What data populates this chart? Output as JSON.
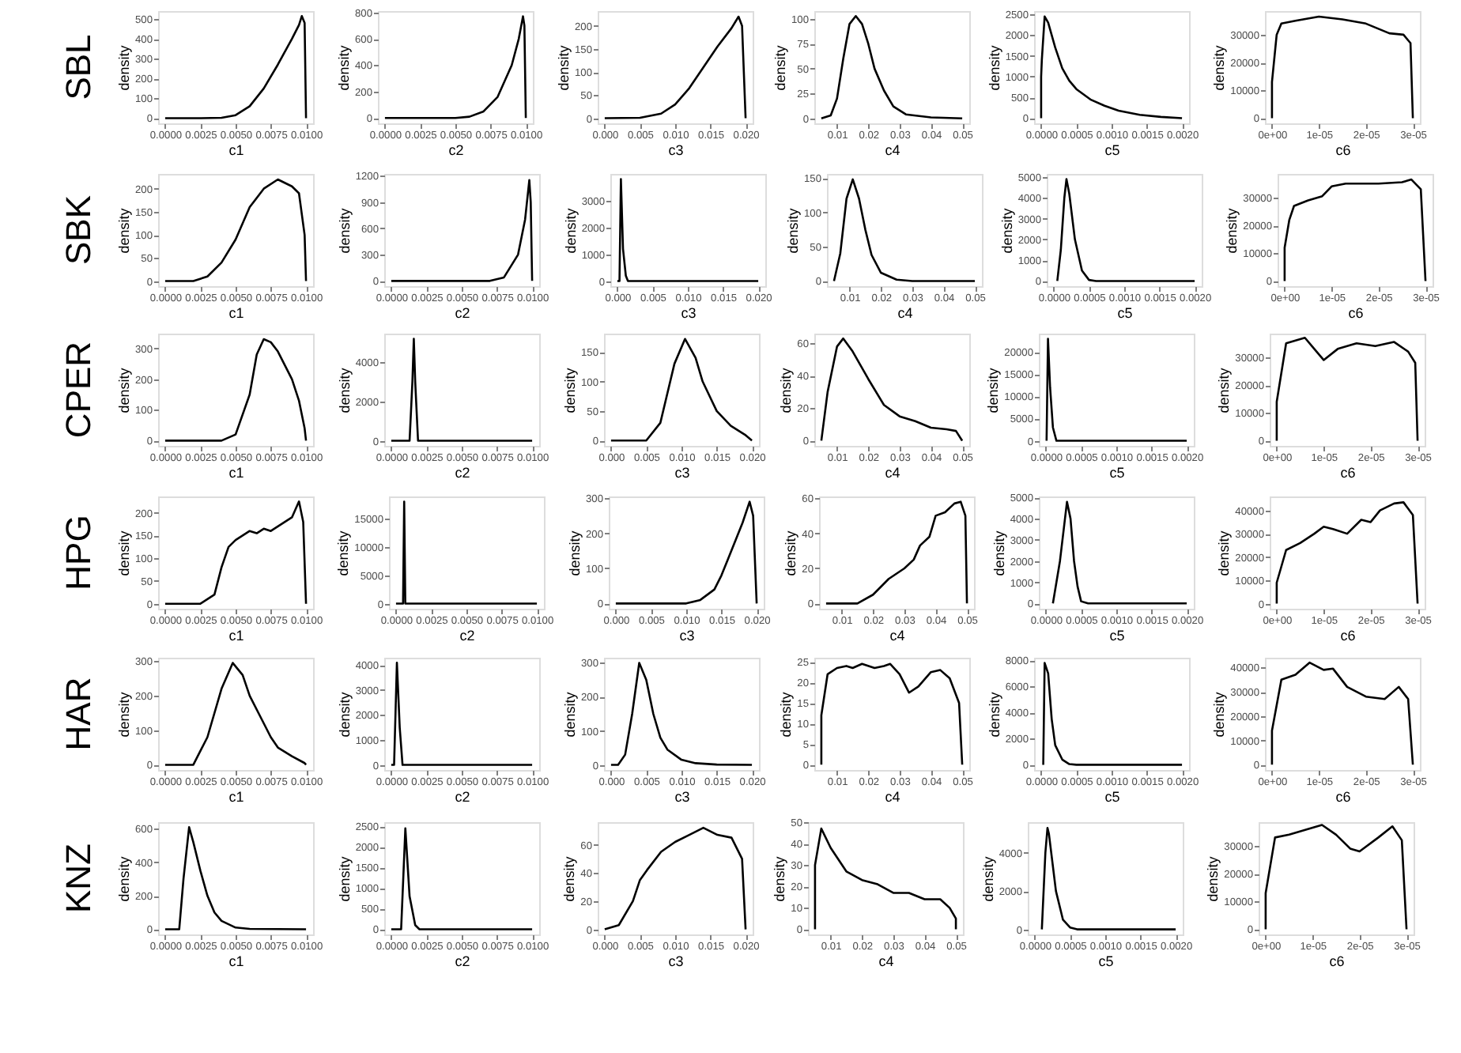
{
  "chart_data": [
    {
      "type": "line",
      "annotations": [
        "SBL"
      ],
      "xlabel": "c1",
      "ylabel": "density",
      "color": "#000000",
      "x": [
        0,
        0.0025,
        0.004,
        0.005,
        0.006,
        0.007,
        0.008,
        0.009,
        0.0095,
        0.0097,
        0.0099,
        0.01
      ],
      "values": [
        0,
        0,
        2,
        15,
        60,
        150,
        270,
        400,
        470,
        515,
        480,
        0
      ],
      "xlim": [
        -0.0005,
        0.0105
      ],
      "xticks": [
        {
          "value": 0,
          "label": "0.0000"
        },
        {
          "value": 0.0025,
          "label": "0.0025"
        },
        {
          "value": 0.005,
          "label": "0.0050"
        },
        {
          "value": 0.0075,
          "label": "0.0075"
        },
        {
          "value": 0.01,
          "label": "0.0100"
        }
      ],
      "ylim": [
        -26,
        540
      ],
      "yticks": [
        0,
        100,
        200,
        300,
        400,
        500
      ],
      "grid": false
    },
    {
      "type": "line",
      "xlabel": "c2",
      "ylabel": "density",
      "color": "#000000",
      "x": [
        0,
        0.005,
        0.006,
        0.007,
        0.008,
        0.009,
        0.0095,
        0.0098,
        0.0099,
        0.01
      ],
      "values": [
        0,
        0,
        10,
        50,
        160,
        400,
        600,
        770,
        700,
        0
      ],
      "xlim": [
        -0.0005,
        0.0105
      ],
      "xticks": [
        {
          "value": 0,
          "label": "0.0000"
        },
        {
          "value": 0.0025,
          "label": "0.0025"
        },
        {
          "value": 0.005,
          "label": "0.0050"
        },
        {
          "value": 0.0075,
          "label": "0.0075"
        },
        {
          "value": 0.01,
          "label": "0.0100"
        }
      ],
      "ylim": [
        -40,
        810
      ],
      "yticks": [
        0,
        200,
        400,
        600,
        800
      ],
      "grid": false
    },
    {
      "type": "line",
      "xlabel": "c3",
      "ylabel": "density",
      "color": "#000000",
      "x": [
        0,
        0.005,
        0.008,
        0.01,
        0.012,
        0.014,
        0.016,
        0.018,
        0.019,
        0.0195,
        0.02
      ],
      "values": [
        0,
        1,
        10,
        30,
        65,
        110,
        155,
        195,
        220,
        200,
        0
      ],
      "xlim": [
        -0.001,
        0.021
      ],
      "xticks": [
        {
          "value": 0,
          "label": "0.000"
        },
        {
          "value": 0.005,
          "label": "0.005"
        },
        {
          "value": 0.01,
          "label": "0.010"
        },
        {
          "value": 0.015,
          "label": "0.015"
        },
        {
          "value": 0.02,
          "label": "0.020"
        }
      ],
      "ylim": [
        -11,
        232
      ],
      "yticks": [
        0,
        50,
        100,
        150,
        200
      ],
      "grid": false
    },
    {
      "type": "line",
      "xlabel": "c4",
      "ylabel": "density",
      "color": "#000000",
      "x": [
        0.005,
        0.008,
        0.01,
        0.012,
        0.014,
        0.016,
        0.018,
        0.02,
        0.022,
        0.025,
        0.028,
        0.032,
        0.04,
        0.05
      ],
      "values": [
        0,
        3,
        20,
        60,
        95,
        103,
        95,
        75,
        50,
        28,
        12,
        4,
        1,
        0
      ],
      "xlim": [
        0.00275,
        0.05225
      ],
      "xticks": [
        0.01,
        0.02,
        0.03,
        0.04,
        0.05
      ],
      "ylim": [
        -5,
        108
      ],
      "yticks": [
        0,
        25,
        50,
        75,
        100
      ],
      "grid": false
    },
    {
      "type": "line",
      "xlabel": "c5",
      "ylabel": "density",
      "color": "#000000",
      "x": [
        0,
        0,
        1e-05,
        5e-05,
        0.0001,
        0.0002,
        0.0003,
        0.0004,
        0.0005,
        0.0007,
        0.0009,
        0.0011,
        0.0014,
        0.0017,
        0.002
      ],
      "values": [
        0,
        1000,
        1400,
        2450,
        2300,
        1700,
        1200,
        900,
        700,
        450,
        300,
        180,
        80,
        30,
        0
      ],
      "xlim": [
        -0.0001,
        0.0021
      ],
      "xticks": [
        {
          "value": 0,
          "label": "0.0000"
        },
        {
          "value": 0.0005,
          "label": "0.0005"
        },
        {
          "value": 0.001,
          "label": "0.0010"
        },
        {
          "value": 0.0015,
          "label": "0.0015"
        },
        {
          "value": 0.002,
          "label": "0.0020"
        }
      ],
      "ylim": [
        -125,
        2580
      ],
      "yticks": [
        0,
        500,
        1000,
        1500,
        2000,
        2500
      ],
      "grid": false
    },
    {
      "type": "line",
      "xlabel": "c6",
      "ylabel": "density",
      "color": "#000000",
      "x": [
        0,
        0,
        1e-06,
        2e-06,
        5e-06,
        1e-05,
        1.5e-05,
        2e-05,
        2.5e-05,
        2.8e-05,
        2.95e-05,
        3e-05
      ],
      "values": [
        0,
        13000,
        30000,
        34000,
        35000,
        36500,
        35500,
        34000,
        30500,
        30000,
        27000,
        0
      ],
      "xlim": [
        -1.5e-06,
        3.15e-05
      ],
      "xticks": [
        {
          "value": 0,
          "label": "0e+00"
        },
        {
          "value": 1e-05,
          "label": "1e-05"
        },
        {
          "value": 2e-05,
          "label": "2e-05"
        },
        {
          "value": 3e-05,
          "label": "3e-05"
        }
      ],
      "ylim": [
        -1850,
        38500
      ],
      "yticks": [
        0,
        10000,
        20000,
        30000
      ],
      "grid": false
    },
    {
      "type": "line",
      "annotations": [
        "SBK"
      ],
      "xlabel": "c1",
      "ylabel": "density",
      "color": "#000000",
      "x": [
        0,
        0.002,
        0.003,
        0.004,
        0.005,
        0.006,
        0.007,
        0.008,
        0.009,
        0.0095,
        0.0099,
        0.01
      ],
      "values": [
        0,
        0,
        10,
        40,
        90,
        160,
        200,
        220,
        205,
        190,
        100,
        0
      ],
      "xlim": [
        -0.0005,
        0.0105
      ],
      "xticks": [
        {
          "value": 0,
          "label": "0.0000"
        },
        {
          "value": 0.0025,
          "label": "0.0025"
        },
        {
          "value": 0.005,
          "label": "0.0050"
        },
        {
          "value": 0.0075,
          "label": "0.0075"
        },
        {
          "value": 0.01,
          "label": "0.0100"
        }
      ],
      "ylim": [
        -11,
        232
      ],
      "yticks": [
        0,
        50,
        100,
        150,
        200
      ],
      "grid": false
    },
    {
      "type": "line",
      "xlabel": "c2",
      "ylabel": "density",
      "color": "#000000",
      "x": [
        0,
        0.007,
        0.008,
        0.009,
        0.0095,
        0.0098,
        0.0099,
        0.01
      ],
      "values": [
        0,
        0,
        40,
        300,
        700,
        1150,
        900,
        0
      ],
      "xlim": [
        -0.0005,
        0.0105
      ],
      "xticks": [
        {
          "value": 0,
          "label": "0.0000"
        },
        {
          "value": 0.0025,
          "label": "0.0025"
        },
        {
          "value": 0.005,
          "label": "0.0050"
        },
        {
          "value": 0.0075,
          "label": "0.0075"
        },
        {
          "value": 0.01,
          "label": "0.0100"
        }
      ],
      "ylim": [
        -60,
        1220
      ],
      "yticks": [
        0,
        300,
        600,
        900,
        1200
      ],
      "grid": false
    },
    {
      "type": "line",
      "xlabel": "c3",
      "ylabel": "density",
      "color": "#000000",
      "x": [
        0,
        0.0003,
        0.0005,
        0.0008,
        0.0012,
        0.0015,
        0.02
      ],
      "values": [
        0,
        0,
        3800,
        1200,
        200,
        0,
        0
      ],
      "xlim": [
        -0.001,
        0.021
      ],
      "xticks": [
        {
          "value": 0,
          "label": "0.000"
        },
        {
          "value": 0.005,
          "label": "0.005"
        },
        {
          "value": 0.01,
          "label": "0.010"
        },
        {
          "value": 0.015,
          "label": "0.015"
        },
        {
          "value": 0.02,
          "label": "0.020"
        }
      ],
      "ylim": [
        -190,
        3990
      ],
      "yticks": [
        0,
        1000,
        2000,
        3000
      ],
      "grid": false
    },
    {
      "type": "line",
      "xlabel": "c4",
      "ylabel": "density",
      "color": "#000000",
      "x": [
        0.005,
        0.007,
        0.009,
        0.011,
        0.013,
        0.015,
        0.017,
        0.02,
        0.025,
        0.03,
        0.05
      ],
      "values": [
        0,
        40,
        120,
        148,
        120,
        75,
        38,
        12,
        2,
        0,
        0
      ],
      "xlim": [
        0.00275,
        0.05225
      ],
      "xticks": [
        0.01,
        0.02,
        0.03,
        0.04,
        0.05
      ],
      "ylim": [
        -7.5,
        156
      ],
      "yticks": [
        0,
        50,
        100,
        150
      ],
      "grid": false
    },
    {
      "type": "line",
      "xlabel": "c5",
      "ylabel": "density",
      "color": "#000000",
      "x": [
        5e-05,
        0.0001,
        0.00015,
        0.00018,
        0.00022,
        0.0003,
        0.0004,
        0.0005,
        0.0006,
        0.002
      ],
      "values": [
        0,
        1500,
        4000,
        4900,
        4200,
        2000,
        500,
        50,
        0,
        0
      ],
      "xlim": [
        -0.0001,
        0.0021
      ],
      "xticks": [
        {
          "value": 0,
          "label": "0.0000"
        },
        {
          "value": 0.0005,
          "label": "0.0005"
        },
        {
          "value": 0.001,
          "label": "0.0010"
        },
        {
          "value": 0.0015,
          "label": "0.0015"
        },
        {
          "value": 0.002,
          "label": "0.0020"
        }
      ],
      "ylim": [
        -250,
        5150
      ],
      "yticks": [
        0,
        1000,
        2000,
        3000,
        4000,
        5000
      ],
      "grid": false
    },
    {
      "type": "line",
      "xlabel": "c6",
      "ylabel": "density",
      "color": "#000000",
      "x": [
        0,
        0,
        1e-06,
        2e-06,
        5e-06,
        8e-06,
        1e-05,
        1.3e-05,
        2e-05,
        2.5e-05,
        2.7e-05,
        2.9e-05,
        3e-05
      ],
      "values": [
        0,
        12000,
        22000,
        27000,
        29000,
        30500,
        34000,
        35000,
        35000,
        35500,
        36500,
        33000,
        0
      ],
      "xlim": [
        -1.5e-06,
        3.15e-05
      ],
      "xticks": [
        {
          "value": 0,
          "label": "0e+00"
        },
        {
          "value": 1e-05,
          "label": "1e-05"
        },
        {
          "value": 2e-05,
          "label": "2e-05"
        },
        {
          "value": 3e-05,
          "label": "3e-05"
        }
      ],
      "ylim": [
        -1850,
        38500
      ],
      "yticks": [
        0,
        10000,
        20000,
        30000
      ],
      "grid": false
    },
    {
      "type": "line",
      "annotations": [
        "CPER"
      ],
      "xlabel": "c1",
      "ylabel": "density",
      "color": "#000000",
      "x": [
        0,
        0.004,
        0.005,
        0.006,
        0.0065,
        0.007,
        0.0075,
        0.008,
        0.009,
        0.0095,
        0.0099,
        0.01
      ],
      "values": [
        0,
        0,
        20,
        150,
        280,
        330,
        320,
        290,
        200,
        130,
        40,
        0
      ],
      "xlim": [
        -0.0005,
        0.0105
      ],
      "xticks": [
        {
          "value": 0,
          "label": "0.0000"
        },
        {
          "value": 0.0025,
          "label": "0.0025"
        },
        {
          "value": 0.005,
          "label": "0.0050"
        },
        {
          "value": 0.0075,
          "label": "0.0075"
        },
        {
          "value": 0.01,
          "label": "0.0100"
        }
      ],
      "ylim": [
        -17,
        348
      ],
      "yticks": [
        0,
        100,
        200,
        300
      ],
      "grid": false
    },
    {
      "type": "line",
      "xlabel": "c2",
      "ylabel": "density",
      "color": "#000000",
      "x": [
        0,
        0.0013,
        0.0015,
        0.0016,
        0.0017,
        0.0019,
        0.01
      ],
      "values": [
        0,
        0,
        3000,
        5200,
        3000,
        0,
        0
      ],
      "xlim": [
        -0.0005,
        0.0105
      ],
      "xticks": [
        {
          "value": 0,
          "label": "0.0000"
        },
        {
          "value": 0.0025,
          "label": "0.0025"
        },
        {
          "value": 0.005,
          "label": "0.0050"
        },
        {
          "value": 0.0075,
          "label": "0.0075"
        },
        {
          "value": 0.01,
          "label": "0.0100"
        }
      ],
      "ylim": [
        -260,
        5460
      ],
      "yticks": [
        0,
        2000,
        4000
      ],
      "grid": false
    },
    {
      "type": "line",
      "xlabel": "c3",
      "ylabel": "density",
      "color": "#000000",
      "x": [
        0,
        0.005,
        0.007,
        0.009,
        0.0105,
        0.012,
        0.013,
        0.015,
        0.017,
        0.019,
        0.02
      ],
      "values": [
        0,
        0,
        30,
        130,
        172,
        140,
        100,
        50,
        25,
        10,
        0
      ],
      "xlim": [
        -0.001,
        0.021
      ],
      "xticks": [
        {
          "value": 0,
          "label": "0.000"
        },
        {
          "value": 0.005,
          "label": "0.005"
        },
        {
          "value": 0.01,
          "label": "0.010"
        },
        {
          "value": 0.015,
          "label": "0.015"
        },
        {
          "value": 0.02,
          "label": "0.020"
        }
      ],
      "ylim": [
        -9,
        181
      ],
      "yticks": [
        0,
        50,
        100,
        150
      ],
      "grid": false
    },
    {
      "type": "line",
      "xlabel": "c4",
      "ylabel": "density",
      "color": "#000000",
      "x": [
        0.005,
        0.007,
        0.01,
        0.012,
        0.015,
        0.02,
        0.025,
        0.03,
        0.035,
        0.04,
        0.045,
        0.048,
        0.05
      ],
      "values": [
        0,
        30,
        58,
        63,
        55,
        38,
        22,
        15,
        12,
        8,
        7,
        6,
        0
      ],
      "xlim": [
        0.00275,
        0.05225
      ],
      "xticks": [
        0.01,
        0.02,
        0.03,
        0.04,
        0.05
      ],
      "ylim": [
        -3.2,
        66
      ],
      "yticks": [
        0,
        20,
        40,
        60
      ],
      "grid": false
    },
    {
      "type": "line",
      "xlabel": "c5",
      "ylabel": "density",
      "color": "#000000",
      "x": [
        1e-05,
        3e-05,
        6e-05,
        0.0001,
        0.00015,
        0.002
      ],
      "values": [
        0,
        23000,
        12000,
        3000,
        0,
        0
      ],
      "xlim": [
        -0.0001,
        0.0021
      ],
      "xticks": [
        {
          "value": 0,
          "label": "0.0000"
        },
        {
          "value": 0.0005,
          "label": "0.0005"
        },
        {
          "value": 0.001,
          "label": "0.0010"
        },
        {
          "value": 0.0015,
          "label": "0.0015"
        },
        {
          "value": 0.002,
          "label": "0.0020"
        }
      ],
      "ylim": [
        -1150,
        24150
      ],
      "yticks": [
        0,
        5000,
        10000,
        15000,
        20000
      ],
      "grid": false
    },
    {
      "type": "line",
      "xlabel": "c6",
      "ylabel": "density",
      "color": "#000000",
      "x": [
        0,
        0,
        2e-06,
        4e-06,
        6e-06,
        8e-06,
        1e-05,
        1.3e-05,
        1.7e-05,
        2.1e-05,
        2.5e-05,
        2.8e-05,
        2.95e-05,
        3e-05
      ],
      "values": [
        0,
        14000,
        35000,
        36000,
        37000,
        33000,
        29000,
        33000,
        35000,
        34000,
        35500,
        32000,
        28000,
        0
      ],
      "xlim": [
        -1.5e-06,
        3.15e-05
      ],
      "xticks": [
        {
          "value": 0,
          "label": "0e+00"
        },
        {
          "value": 1e-05,
          "label": "1e-05"
        },
        {
          "value": 2e-05,
          "label": "2e-05"
        },
        {
          "value": 3e-05,
          "label": "3e-05"
        }
      ],
      "ylim": [
        -1850,
        38500
      ],
      "yticks": [
        0,
        10000,
        20000,
        30000
      ],
      "grid": false
    },
    {
      "type": "line",
      "annotations": [
        "HPG"
      ],
      "xlabel": "c1",
      "ylabel": "density",
      "color": "#000000",
      "x": [
        0,
        0.0025,
        0.0035,
        0.004,
        0.0045,
        0.005,
        0.006,
        0.0065,
        0.007,
        0.0075,
        0.008,
        0.009,
        0.0095,
        0.0098,
        0.01
      ],
      "values": [
        0,
        0,
        20,
        80,
        125,
        140,
        160,
        155,
        165,
        160,
        170,
        190,
        225,
        180,
        0
      ],
      "xlim": [
        -0.0005,
        0.0105
      ],
      "xticks": [
        {
          "value": 0,
          "label": "0.0000"
        },
        {
          "value": 0.0025,
          "label": "0.0025"
        },
        {
          "value": 0.005,
          "label": "0.0050"
        },
        {
          "value": 0.0075,
          "label": "0.0075"
        },
        {
          "value": 0.01,
          "label": "0.0100"
        }
      ],
      "ylim": [
        -11,
        236
      ],
      "yticks": [
        0,
        50,
        100,
        150,
        200
      ],
      "grid": false
    },
    {
      "type": "line",
      "xlabel": "c2",
      "ylabel": "density",
      "color": "#000000",
      "x": [
        0,
        0.0005,
        0.00058,
        0.00066,
        0.01
      ],
      "values": [
        0,
        0,
        18000,
        0,
        0
      ],
      "xlim": [
        -0.0005,
        0.0105
      ],
      "xticks": [
        {
          "value": 0,
          "label": "0.0000"
        },
        {
          "value": 0.0025,
          "label": "0.0025"
        },
        {
          "value": 0.005,
          "label": "0.0050"
        },
        {
          "value": 0.0075,
          "label": "0.0075"
        },
        {
          "value": 0.01,
          "label": "0.0100"
        }
      ],
      "ylim": [
        -900,
        18900
      ],
      "yticks": [
        0,
        5000,
        10000,
        15000
      ],
      "grid": false
    },
    {
      "type": "line",
      "xlabel": "c3",
      "ylabel": "density",
      "color": "#000000",
      "x": [
        0,
        0.01,
        0.012,
        0.014,
        0.015,
        0.016,
        0.017,
        0.018,
        0.019,
        0.0195,
        0.02
      ],
      "values": [
        0,
        0,
        10,
        40,
        80,
        130,
        180,
        230,
        290,
        250,
        0
      ],
      "xlim": [
        -0.001,
        0.021
      ],
      "xticks": [
        {
          "value": 0,
          "label": "0.000"
        },
        {
          "value": 0.005,
          "label": "0.005"
        },
        {
          "value": 0.01,
          "label": "0.010"
        },
        {
          "value": 0.015,
          "label": "0.015"
        },
        {
          "value": 0.02,
          "label": "0.020"
        }
      ],
      "ylim": [
        -15,
        305
      ],
      "yticks": [
        0,
        100,
        200,
        300
      ],
      "grid": false
    },
    {
      "type": "line",
      "xlabel": "c4",
      "ylabel": "density",
      "color": "#000000",
      "x": [
        0.005,
        0.015,
        0.02,
        0.025,
        0.03,
        0.033,
        0.035,
        0.038,
        0.04,
        0.043,
        0.046,
        0.048,
        0.0495,
        0.05
      ],
      "values": [
        0,
        0,
        5,
        14,
        20,
        25,
        33,
        38,
        50,
        52,
        57,
        58,
        50,
        0
      ],
      "xlim": [
        0.00275,
        0.05225
      ],
      "xticks": [
        0.01,
        0.02,
        0.03,
        0.04,
        0.05
      ],
      "ylim": [
        -3,
        61
      ],
      "yticks": [
        0,
        20,
        40,
        60
      ],
      "grid": false
    },
    {
      "type": "line",
      "xlabel": "c5",
      "ylabel": "density",
      "color": "#000000",
      "x": [
        0.0001,
        0.0002,
        0.0003,
        0.00035,
        0.0004,
        0.00045,
        0.0005,
        0.0006,
        0.002
      ],
      "values": [
        0,
        2000,
        4800,
        4000,
        2000,
        800,
        100,
        0,
        0
      ],
      "xlim": [
        -0.0001,
        0.0021
      ],
      "xticks": [
        {
          "value": 0,
          "label": "0.0000"
        },
        {
          "value": 0.0005,
          "label": "0.0005"
        },
        {
          "value": 0.001,
          "label": "0.0010"
        },
        {
          "value": 0.0015,
          "label": "0.0015"
        },
        {
          "value": 0.002,
          "label": "0.0020"
        }
      ],
      "ylim": [
        -250,
        5050
      ],
      "yticks": [
        0,
        1000,
        2000,
        3000,
        4000,
        5000
      ],
      "grid": false
    },
    {
      "type": "line",
      "xlabel": "c6",
      "ylabel": "density",
      "color": "#000000",
      "x": [
        0,
        0,
        2e-06,
        5e-06,
        8e-06,
        1e-05,
        1.2e-05,
        1.5e-05,
        1.8e-05,
        2e-05,
        2.2e-05,
        2.5e-05,
        2.7e-05,
        2.9e-05,
        3e-05
      ],
      "values": [
        0,
        9000,
        23000,
        26000,
        30000,
        33000,
        32000,
        30000,
        36000,
        35000,
        40000,
        43000,
        43500,
        38000,
        0
      ],
      "xlim": [
        -1.5e-06,
        3.15e-05
      ],
      "xticks": [
        {
          "value": 0,
          "label": "0e+00"
        },
        {
          "value": 1e-05,
          "label": "1e-05"
        },
        {
          "value": 2e-05,
          "label": "2e-05"
        },
        {
          "value": 3e-05,
          "label": "3e-05"
        }
      ],
      "ylim": [
        -2200,
        46000
      ],
      "yticks": [
        0,
        10000,
        20000,
        30000,
        40000
      ],
      "grid": false
    },
    {
      "type": "line",
      "annotations": [
        "HAR"
      ],
      "xlabel": "c1",
      "ylabel": "density",
      "color": "#000000",
      "x": [
        0,
        0.002,
        0.003,
        0.004,
        0.0048,
        0.0055,
        0.006,
        0.007,
        0.0075,
        0.008,
        0.009,
        0.0099,
        0.01
      ],
      "values": [
        0,
        0,
        80,
        220,
        295,
        260,
        200,
        120,
        80,
        50,
        25,
        5,
        0
      ],
      "xlim": [
        -0.0005,
        0.0105
      ],
      "xticks": [
        {
          "value": 0,
          "label": "0.0000"
        },
        {
          "value": 0.0025,
          "label": "0.0025"
        },
        {
          "value": 0.005,
          "label": "0.0050"
        },
        {
          "value": 0.0075,
          "label": "0.0075"
        },
        {
          "value": 0.01,
          "label": "0.0100"
        }
      ],
      "ylim": [
        -15,
        310
      ],
      "yticks": [
        0,
        100,
        200,
        300
      ],
      "grid": false
    },
    {
      "type": "line",
      "xlabel": "c2",
      "ylabel": "density",
      "color": "#000000",
      "x": [
        0,
        0.0002,
        0.0004,
        0.0006,
        0.0008,
        0.01
      ],
      "values": [
        0,
        0,
        4100,
        1500,
        0,
        0
      ],
      "xlim": [
        -0.0005,
        0.0105
      ],
      "xticks": [
        {
          "value": 0,
          "label": "0.0000"
        },
        {
          "value": 0.0025,
          "label": "0.0025"
        },
        {
          "value": 0.005,
          "label": "0.0050"
        },
        {
          "value": 0.0075,
          "label": "0.0075"
        },
        {
          "value": 0.01,
          "label": "0.0100"
        }
      ],
      "ylim": [
        -205,
        4300
      ],
      "yticks": [
        0,
        1000,
        2000,
        3000,
        4000
      ],
      "grid": false
    },
    {
      "type": "line",
      "xlabel": "c3",
      "ylabel": "density",
      "color": "#000000",
      "x": [
        0,
        0.001,
        0.002,
        0.003,
        0.004,
        0.005,
        0.006,
        0.007,
        0.008,
        0.01,
        0.012,
        0.015,
        0.02
      ],
      "values": [
        0,
        0,
        30,
        150,
        300,
        250,
        150,
        80,
        45,
        15,
        5,
        1,
        0
      ],
      "xlim": [
        -0.001,
        0.021
      ],
      "xticks": [
        {
          "value": 0,
          "label": "0.000"
        },
        {
          "value": 0.005,
          "label": "0.005"
        },
        {
          "value": 0.01,
          "label": "0.010"
        },
        {
          "value": 0.015,
          "label": "0.015"
        },
        {
          "value": 0.02,
          "label": "0.020"
        }
      ],
      "ylim": [
        -15,
        315
      ],
      "yticks": [
        0,
        100,
        200,
        300
      ],
      "grid": false
    },
    {
      "type": "line",
      "xlabel": "c4",
      "ylabel": "density",
      "color": "#000000",
      "x": [
        0.005,
        0.005,
        0.007,
        0.01,
        0.013,
        0.015,
        0.018,
        0.022,
        0.025,
        0.027,
        0.03,
        0.033,
        0.036,
        0.04,
        0.043,
        0.046,
        0.049,
        0.05
      ],
      "values": [
        0,
        12,
        22,
        23.5,
        24,
        23.5,
        24.5,
        23.5,
        24,
        24.5,
        22,
        17.5,
        19,
        22.5,
        23,
        21,
        15,
        0
      ],
      "xlim": [
        0.00275,
        0.05225
      ],
      "xticks": [
        0.01,
        0.02,
        0.03,
        0.04,
        0.05
      ],
      "ylim": [
        -1.3,
        26
      ],
      "yticks": [
        0,
        5,
        10,
        15,
        20,
        25
      ],
      "grid": false
    },
    {
      "type": "line",
      "xlabel": "c5",
      "ylabel": "density",
      "color": "#000000",
      "x": [
        3e-05,
        5e-05,
        0.0001,
        0.00015,
        0.0002,
        0.0003,
        0.0004,
        0.0005,
        0.002
      ],
      "values": [
        0,
        7800,
        7000,
        3500,
        1500,
        400,
        50,
        0,
        0
      ],
      "xlim": [
        -0.0001,
        0.0021
      ],
      "xticks": [
        {
          "value": 0,
          "label": "0.0000"
        },
        {
          "value": 0.0005,
          "label": "0.0005"
        },
        {
          "value": 0.001,
          "label": "0.0010"
        },
        {
          "value": 0.0015,
          "label": "0.0015"
        },
        {
          "value": 0.002,
          "label": "0.0020"
        }
      ],
      "ylim": [
        -400,
        8200
      ],
      "yticks": [
        0,
        2000,
        4000,
        6000,
        8000
      ],
      "grid": false
    },
    {
      "type": "line",
      "xlabel": "c6",
      "ylabel": "density",
      "color": "#000000",
      "x": [
        0,
        0,
        2e-06,
        5e-06,
        8e-06,
        1.1e-05,
        1.3e-05,
        1.6e-05,
        2e-05,
        2.4e-05,
        2.7e-05,
        2.9e-05,
        3e-05
      ],
      "values": [
        0,
        14000,
        35000,
        37000,
        42000,
        39000,
        39500,
        32000,
        28000,
        27000,
        32000,
        27000,
        0
      ],
      "xlim": [
        -1.5e-06,
        3.15e-05
      ],
      "xticks": [
        {
          "value": 0,
          "label": "0e+00"
        },
        {
          "value": 1e-05,
          "label": "1e-05"
        },
        {
          "value": 2e-05,
          "label": "2e-05"
        },
        {
          "value": 3e-05,
          "label": "3e-05"
        }
      ],
      "ylim": [
        -2200,
        44000
      ],
      "yticks": [
        0,
        10000,
        20000,
        30000,
        40000
      ],
      "grid": false
    },
    {
      "type": "line",
      "annotations": [
        "KNZ"
      ],
      "xlabel": "c1",
      "ylabel": "density",
      "color": "#000000",
      "x": [
        0,
        0.001,
        0.0013,
        0.0017,
        0.002,
        0.0025,
        0.003,
        0.0035,
        0.004,
        0.005,
        0.006,
        0.01
      ],
      "values": [
        0,
        0,
        300,
        610,
        520,
        350,
        200,
        100,
        50,
        10,
        2,
        0
      ],
      "xlim": [
        -0.0005,
        0.0105
      ],
      "xticks": [
        {
          "value": 0,
          "label": "0.0000"
        },
        {
          "value": 0.0025,
          "label": "0.0025"
        },
        {
          "value": 0.005,
          "label": "0.0050"
        },
        {
          "value": 0.0075,
          "label": "0.0075"
        },
        {
          "value": 0.01,
          "label": "0.0100"
        }
      ],
      "ylim": [
        -31,
        640
      ],
      "yticks": [
        0,
        200,
        400,
        600
      ],
      "grid": false
    },
    {
      "type": "line",
      "xlabel": "c2",
      "ylabel": "density",
      "color": "#000000",
      "x": [
        0,
        0.0007,
        0.001,
        0.0013,
        0.0017,
        0.002,
        0.01
      ],
      "values": [
        0,
        0,
        2450,
        800,
        100,
        0,
        0
      ],
      "xlim": [
        -0.0005,
        0.0105
      ],
      "xticks": [
        {
          "value": 0,
          "label": "0.0000"
        },
        {
          "value": 0.0025,
          "label": "0.0025"
        },
        {
          "value": 0.005,
          "label": "0.0050"
        },
        {
          "value": 0.0075,
          "label": "0.0075"
        },
        {
          "value": 0.01,
          "label": "0.0100"
        }
      ],
      "ylim": [
        -125,
        2600
      ],
      "yticks": [
        0,
        500,
        1000,
        1500,
        2000,
        2500
      ],
      "grid": false
    },
    {
      "type": "line",
      "xlabel": "c3",
      "ylabel": "density",
      "color": "#000000",
      "x": [
        0,
        0.002,
        0.004,
        0.005,
        0.006,
        0.008,
        0.01,
        0.012,
        0.014,
        0.016,
        0.018,
        0.0195,
        0.02
      ],
      "values": [
        0,
        3,
        20,
        35,
        42,
        55,
        62,
        67,
        72,
        67,
        65,
        50,
        0
      ],
      "xlim": [
        -0.001,
        0.021
      ],
      "xticks": [
        {
          "value": 0,
          "label": "0.000"
        },
        {
          "value": 0.005,
          "label": "0.005"
        },
        {
          "value": 0.01,
          "label": "0.010"
        },
        {
          "value": 0.015,
          "label": "0.015"
        },
        {
          "value": 0.02,
          "label": "0.020"
        }
      ],
      "ylim": [
        -3.6,
        76
      ],
      "yticks": [
        0,
        20,
        40,
        60
      ],
      "grid": false
    },
    {
      "type": "line",
      "xlabel": "c4",
      "ylabel": "density",
      "color": "#000000",
      "x": [
        0.005,
        0.005,
        0.007,
        0.01,
        0.015,
        0.02,
        0.025,
        0.03,
        0.035,
        0.04,
        0.045,
        0.048,
        0.05,
        0.05
      ],
      "values": [
        0,
        30,
        47,
        38,
        27,
        23,
        21,
        17,
        17,
        14,
        14,
        10,
        5,
        0
      ],
      "xlim": [
        0.00275,
        0.05225
      ],
      "xticks": [
        0.01,
        0.02,
        0.03,
        0.04,
        0.05
      ],
      "ylim": [
        -2.4,
        50
      ],
      "yticks": [
        0,
        10,
        20,
        30,
        40,
        50
      ],
      "grid": false
    },
    {
      "type": "line",
      "xlabel": "c5",
      "ylabel": "density",
      "color": "#000000",
      "x": [
        0.0001,
        0.00015,
        0.00018,
        0.0002,
        0.0003,
        0.0004,
        0.0005,
        0.0006,
        0.002
      ],
      "values": [
        0,
        4000,
        5300,
        5000,
        2000,
        500,
        100,
        0,
        0
      ],
      "xlim": [
        -0.0001,
        0.0021
      ],
      "xticks": [
        {
          "value": 0,
          "label": "0.0000"
        },
        {
          "value": 0.0005,
          "label": "0.0005"
        },
        {
          "value": 0.001,
          "label": "0.0010"
        },
        {
          "value": 0.0015,
          "label": "0.0015"
        },
        {
          "value": 0.002,
          "label": "0.0020"
        }
      ],
      "ylim": [
        -265,
        5600
      ],
      "yticks": [
        0,
        2000,
        4000
      ],
      "grid": false
    },
    {
      "type": "line",
      "xlabel": "c6",
      "ylabel": "density",
      "color": "#000000",
      "x": [
        0,
        0,
        2e-06,
        5e-06,
        8e-06,
        1.2e-05,
        1.5e-05,
        1.8e-05,
        2e-05,
        2.4e-05,
        2.7e-05,
        2.9e-05,
        3e-05
      ],
      "values": [
        0,
        13000,
        33000,
        34000,
        35500,
        37500,
        34000,
        29000,
        28000,
        33000,
        37000,
        32000,
        0
      ],
      "xlim": [
        -1.5e-06,
        3.15e-05
      ],
      "xticks": [
        {
          "value": 0,
          "label": "0e+00"
        },
        {
          "value": 1e-05,
          "label": "1e-05"
        },
        {
          "value": 2e-05,
          "label": "2e-05"
        },
        {
          "value": 3e-05,
          "label": "3e-05"
        }
      ],
      "ylim": [
        -1850,
        38500
      ],
      "yticks": [
        0,
        10000,
        20000,
        30000
      ],
      "grid": false
    }
  ]
}
